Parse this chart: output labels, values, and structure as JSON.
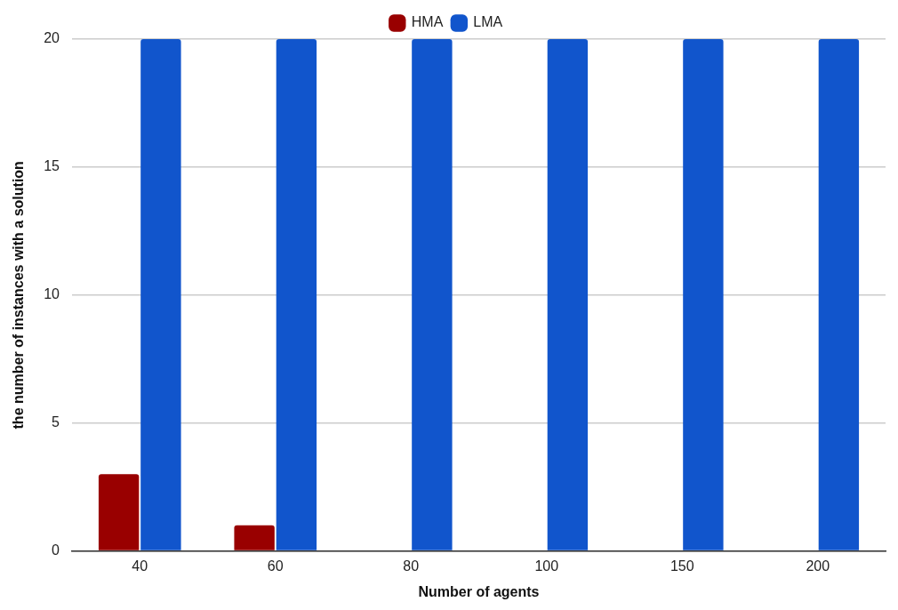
{
  "chart_data": {
    "type": "bar",
    "xlabel": "Number of agents",
    "ylabel": "the number of instances with a solution",
    "categories": [
      "40",
      "60",
      "80",
      "100",
      "150",
      "200"
    ],
    "series": [
      {
        "name": "HMA",
        "color": "#990000",
        "values": [
          3,
          1,
          0,
          0,
          0,
          0
        ]
      },
      {
        "name": "LMA",
        "color": "#1155cc",
        "values": [
          20,
          20,
          20,
          20,
          20,
          20
        ]
      }
    ],
    "ylim": [
      0,
      20
    ],
    "yticks": [
      0,
      5,
      10,
      15,
      20
    ],
    "grid": "y",
    "legend": "top"
  }
}
